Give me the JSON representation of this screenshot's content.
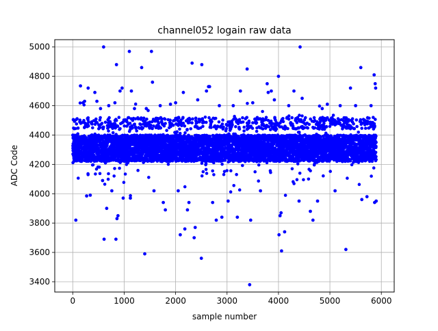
{
  "chart_data": {
    "type": "scatter",
    "title": "channel052 logain raw data",
    "xlabel": "sample number",
    "ylabel": "ADC Code",
    "xlim": [
      -350,
      6250
    ],
    "ylim": [
      3330,
      5050
    ],
    "xticks": [
      0,
      1000,
      2000,
      3000,
      4000,
      5000,
      6000
    ],
    "yticks": [
      3400,
      3600,
      3800,
      4000,
      4200,
      4400,
      4600,
      4800,
      5000
    ],
    "grid": true,
    "legend": null,
    "marker_color": "#0000ff",
    "series": [
      {
        "x_range": [
          0,
          5900
        ],
        "count": 5900,
        "dense_band": [
          4220,
          4400
        ],
        "upper_band": [
          4440,
          4520
        ],
        "center": 4310,
        "points": [
          {
            "x": 10,
            "y": 4505
          },
          {
            "x": 60,
            "y": 3820
          },
          {
            "x": 150,
            "y": 4735
          },
          {
            "x": 200,
            "y": 4620
          },
          {
            "x": 230,
            "y": 4630
          },
          {
            "x": 270,
            "y": 3985
          },
          {
            "x": 300,
            "y": 4720
          },
          {
            "x": 340,
            "y": 3990
          },
          {
            "x": 430,
            "y": 4690
          },
          {
            "x": 470,
            "y": 4630
          },
          {
            "x": 540,
            "y": 4580
          },
          {
            "x": 580,
            "y": 4090
          },
          {
            "x": 600,
            "y": 5000
          },
          {
            "x": 610,
            "y": 3690
          },
          {
            "x": 660,
            "y": 3900
          },
          {
            "x": 700,
            "y": 4600
          },
          {
            "x": 760,
            "y": 4020
          },
          {
            "x": 820,
            "y": 4620
          },
          {
            "x": 840,
            "y": 3690
          },
          {
            "x": 850,
            "y": 4880
          },
          {
            "x": 860,
            "y": 3830
          },
          {
            "x": 880,
            "y": 3850
          },
          {
            "x": 920,
            "y": 4700
          },
          {
            "x": 960,
            "y": 4720
          },
          {
            "x": 980,
            "y": 3970
          },
          {
            "x": 1100,
            "y": 4970
          },
          {
            "x": 1120,
            "y": 3970
          },
          {
            "x": 1140,
            "y": 4700
          },
          {
            "x": 1200,
            "y": 4580
          },
          {
            "x": 1340,
            "y": 4860
          },
          {
            "x": 1400,
            "y": 3590
          },
          {
            "x": 1430,
            "y": 4580
          },
          {
            "x": 1530,
            "y": 4970
          },
          {
            "x": 1550,
            "y": 4760
          },
          {
            "x": 1580,
            "y": 4020
          },
          {
            "x": 1700,
            "y": 4600
          },
          {
            "x": 1760,
            "y": 3940
          },
          {
            "x": 1800,
            "y": 3890
          },
          {
            "x": 1900,
            "y": 4610
          },
          {
            "x": 2000,
            "y": 4620
          },
          {
            "x": 2050,
            "y": 4020
          },
          {
            "x": 2090,
            "y": 3720
          },
          {
            "x": 2150,
            "y": 4690
          },
          {
            "x": 2180,
            "y": 3760
          },
          {
            "x": 2230,
            "y": 3890
          },
          {
            "x": 2260,
            "y": 3940
          },
          {
            "x": 2320,
            "y": 4890
          },
          {
            "x": 2360,
            "y": 3700
          },
          {
            "x": 2380,
            "y": 3770
          },
          {
            "x": 2430,
            "y": 4640
          },
          {
            "x": 2500,
            "y": 3560
          },
          {
            "x": 2510,
            "y": 4880
          },
          {
            "x": 2600,
            "y": 4700
          },
          {
            "x": 2640,
            "y": 4730
          },
          {
            "x": 2660,
            "y": 4730
          },
          {
            "x": 2720,
            "y": 3940
          },
          {
            "x": 2790,
            "y": 3820
          },
          {
            "x": 2850,
            "y": 4600
          },
          {
            "x": 2900,
            "y": 3840
          },
          {
            "x": 3020,
            "y": 3950
          },
          {
            "x": 3120,
            "y": 4600
          },
          {
            "x": 3200,
            "y": 3840
          },
          {
            "x": 3260,
            "y": 4700
          },
          {
            "x": 3390,
            "y": 4850
          },
          {
            "x": 3440,
            "y": 3380
          },
          {
            "x": 3460,
            "y": 3820
          },
          {
            "x": 3500,
            "y": 4620
          },
          {
            "x": 3560,
            "y": 4500
          },
          {
            "x": 3650,
            "y": 4020
          },
          {
            "x": 3780,
            "y": 4750
          },
          {
            "x": 3800,
            "y": 4690
          },
          {
            "x": 3860,
            "y": 4700
          },
          {
            "x": 3920,
            "y": 4640
          },
          {
            "x": 4000,
            "y": 4800
          },
          {
            "x": 4010,
            "y": 3720
          },
          {
            "x": 4030,
            "y": 3850
          },
          {
            "x": 4050,
            "y": 3870
          },
          {
            "x": 4060,
            "y": 3610
          },
          {
            "x": 4120,
            "y": 3740
          },
          {
            "x": 4200,
            "y": 4600
          },
          {
            "x": 4300,
            "y": 4700
          },
          {
            "x": 4400,
            "y": 3950
          },
          {
            "x": 4420,
            "y": 5000
          },
          {
            "x": 4460,
            "y": 4650
          },
          {
            "x": 4620,
            "y": 3880
          },
          {
            "x": 4670,
            "y": 3820
          },
          {
            "x": 4760,
            "y": 3950
          },
          {
            "x": 4850,
            "y": 4580
          },
          {
            "x": 4950,
            "y": 4610
          },
          {
            "x": 5100,
            "y": 4020
          },
          {
            "x": 5200,
            "y": 4600
          },
          {
            "x": 5310,
            "y": 3620
          },
          {
            "x": 5400,
            "y": 4720
          },
          {
            "x": 5500,
            "y": 4600
          },
          {
            "x": 5600,
            "y": 4860
          },
          {
            "x": 5620,
            "y": 3960
          },
          {
            "x": 5720,
            "y": 3980
          },
          {
            "x": 5800,
            "y": 4600
          },
          {
            "x": 5860,
            "y": 4810
          },
          {
            "x": 5870,
            "y": 3940
          },
          {
            "x": 5880,
            "y": 4750
          },
          {
            "x": 5890,
            "y": 4720
          },
          {
            "x": 5900,
            "y": 3950
          }
        ]
      }
    ]
  }
}
